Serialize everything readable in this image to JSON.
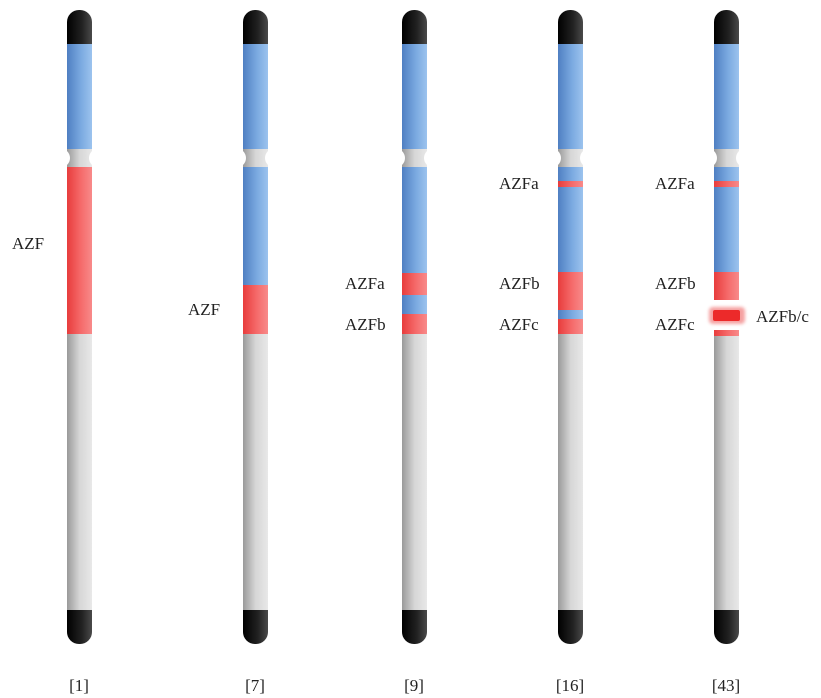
{
  "colors": {
    "tip": "#111111",
    "blue": "#6a9bd8",
    "red": "#f05a5a",
    "grey": "#c8c8c8"
  },
  "columns": [
    {
      "reference": "[1]",
      "labels": [
        {
          "text": "AZF",
          "side": "left",
          "row": "c1_azf"
        }
      ]
    },
    {
      "reference": "[7]",
      "labels": [
        {
          "text": "AZF",
          "side": "left",
          "row": "c2_azf"
        }
      ]
    },
    {
      "reference": "[9]",
      "labels": [
        {
          "text": "AZFa",
          "side": "left",
          "row": "c3_a"
        },
        {
          "text": "AZFb",
          "side": "left",
          "row": "c3_b"
        }
      ]
    },
    {
      "reference": "[16]",
      "labels": [
        {
          "text": "AZFa",
          "side": "left",
          "row": "c4_a"
        },
        {
          "text": "AZFb",
          "side": "left",
          "row": "c4_b"
        },
        {
          "text": "AZFc",
          "side": "left",
          "row": "c4_c"
        }
      ]
    },
    {
      "reference": "[43]",
      "labels": [
        {
          "text": "AZFa",
          "side": "left",
          "row": "c5_a"
        },
        {
          "text": "AZFb",
          "side": "left",
          "row": "c5_b"
        },
        {
          "text": "AZFc",
          "side": "left",
          "row": "c5_c"
        },
        {
          "text": "AZFb/c",
          "side": "right",
          "row": "c5_bc"
        }
      ]
    }
  ]
}
